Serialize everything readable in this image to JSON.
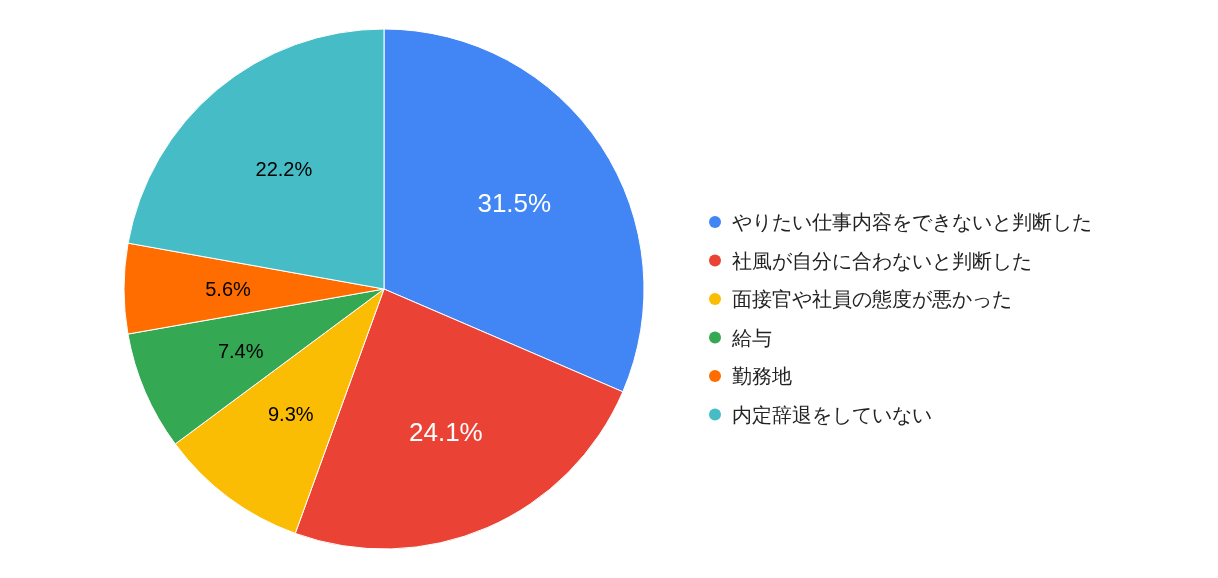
{
  "chart_data": {
    "type": "pie",
    "categories": [
      "やりたい仕事内容をできないと判断した",
      "社風が自分に合わないと判断した",
      "面接官や社員の態度が悪かった",
      "給与",
      "勤務地",
      "内定辞退をしていない"
    ],
    "values": [
      31.5,
      24.1,
      9.3,
      7.4,
      5.6,
      22.2
    ],
    "colors": [
      "#4285f4",
      "#ea4335",
      "#fbbc04",
      "#34a853",
      "#ff6d01",
      "#46bdc6"
    ],
    "value_labels": [
      "31.5%",
      "24.1%",
      "9.3%",
      "7.4%",
      "5.6%",
      "22.2%"
    ],
    "legend": "right"
  }
}
